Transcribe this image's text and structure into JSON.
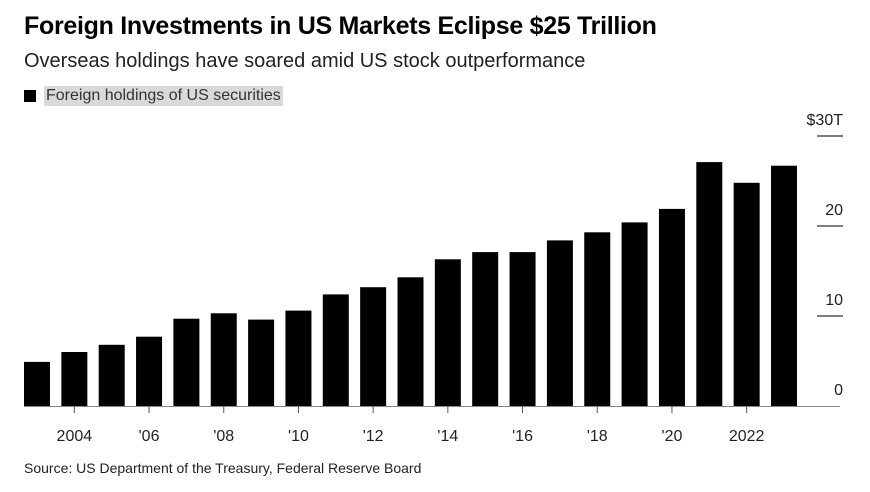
{
  "chart_data": {
    "type": "bar",
    "title": "Foreign Investments in US Markets Eclipse $25 Trillion",
    "subtitle": "Overseas holdings have soared amid US stock outperformance",
    "legend": [
      {
        "name": "Foreign holdings of US securities",
        "color": "#000000"
      }
    ],
    "legend_position": "top-left",
    "categories": [
      "2003",
      "2004",
      "2005",
      "2006",
      "2007",
      "2008",
      "2009",
      "2010",
      "2011",
      "2012",
      "2013",
      "2014",
      "2015",
      "2016",
      "2017",
      "2018",
      "2019",
      "2020",
      "2021",
      "2022",
      "2023"
    ],
    "series": [
      {
        "name": "Foreign holdings of US securities",
        "values": [
          4.9,
          6.0,
          6.8,
          7.7,
          9.7,
          10.3,
          9.6,
          10.6,
          12.4,
          13.2,
          14.3,
          16.3,
          17.1,
          17.1,
          18.4,
          19.3,
          20.4,
          21.9,
          27.1,
          24.8,
          26.7
        ]
      }
    ],
    "x_tick_labels": [
      {
        "year": "2004",
        "label": "2004"
      },
      {
        "year": "2006",
        "label": "'06"
      },
      {
        "year": "2008",
        "label": "'08"
      },
      {
        "year": "2010",
        "label": "'10"
      },
      {
        "year": "2012",
        "label": "'12"
      },
      {
        "year": "2014",
        "label": "'14"
      },
      {
        "year": "2016",
        "label": "'16"
      },
      {
        "year": "2018",
        "label": "'18"
      },
      {
        "year": "2020",
        "label": "'20"
      },
      {
        "year": "2022",
        "label": "2022"
      }
    ],
    "y_ticks": [
      {
        "value": 0,
        "label": "0"
      },
      {
        "value": 10,
        "label": "10"
      },
      {
        "value": 20,
        "label": "20"
      },
      {
        "value": 30,
        "label": "$30T"
      }
    ],
    "ylim": [
      0,
      30
    ],
    "y_axis_position": "right",
    "grid": false,
    "source": "Source: US Department of the Treasury, Federal Reserve Board"
  }
}
